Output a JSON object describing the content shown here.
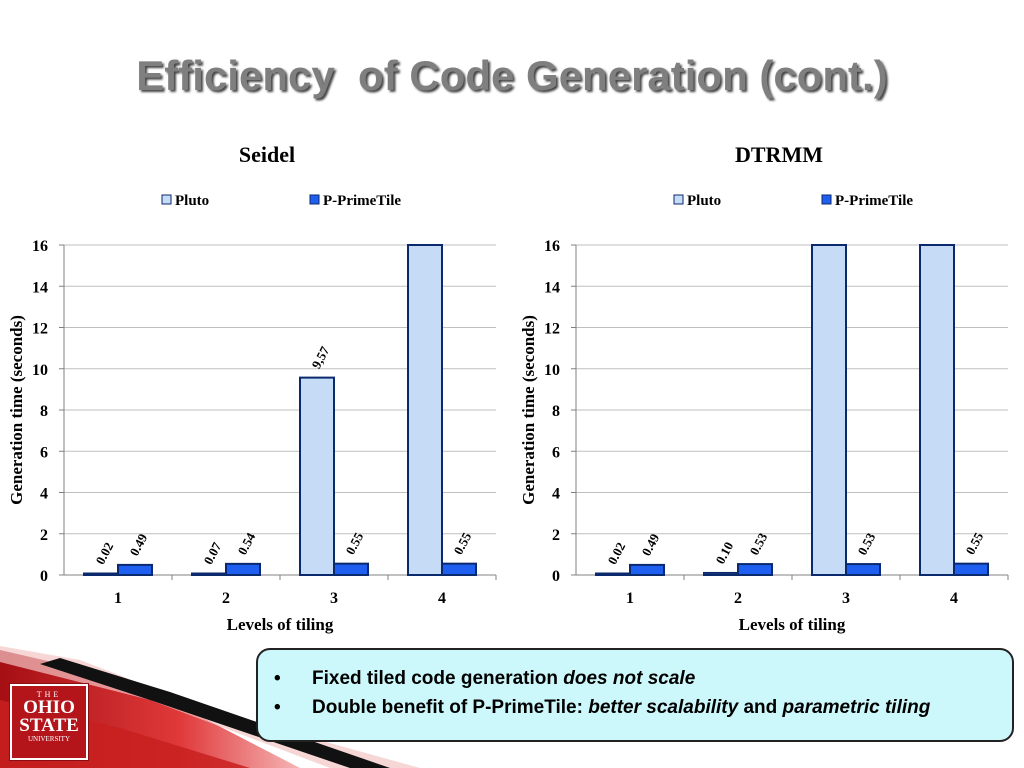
{
  "slide": {
    "title": "Efficiency  of Code Generation (cont.)",
    "logo": {
      "line1": "THE",
      "line2": "OHIO",
      "line3": "STATE",
      "line4": "UNIVERSITY"
    }
  },
  "colors": {
    "pluto_fill": "#c6dcf6",
    "primetile_fill": "#1f5ff0",
    "bar_stroke": "#0b2a6e",
    "gridline": "#bfbfbf",
    "callout_bg": "#ccf8fb",
    "ohio_red": "#b3151b"
  },
  "callout": {
    "bullet1": {
      "text": "Fixed tiled code generation ",
      "emph": "does not scale"
    },
    "bullet2": {
      "text1": "Double benefit of P-PrimeTile: ",
      "emph1": "better scalability",
      "text2": " and ",
      "emph2": "parametric tiling"
    }
  },
  "chart_data": [
    {
      "type": "bar",
      "title": "Seidel",
      "xlabel": "Levels of tiling",
      "ylabel": "Generation time (seconds)",
      "categories": [
        "1",
        "2",
        "3",
        "4"
      ],
      "ylim": [
        0,
        16
      ],
      "yticks": [
        0,
        2,
        4,
        6,
        8,
        10,
        12,
        14,
        16
      ],
      "grid": true,
      "legend_position": "top",
      "series": [
        {
          "name": "Pluto",
          "values": [
            0.02,
            0.07,
            9.57,
            16
          ],
          "labels": [
            "0.02",
            "0.07",
            "9,57",
            ""
          ]
        },
        {
          "name": "P-PrimeTile",
          "values": [
            0.49,
            0.54,
            0.55,
            0.55
          ],
          "labels": [
            "0.49",
            "0.54",
            "0.55",
            "0.55"
          ]
        }
      ]
    },
    {
      "type": "bar",
      "title": "DTRMM",
      "xlabel": "Levels of tiling",
      "ylabel": "Generation time (seconds)",
      "categories": [
        "1",
        "2",
        "3",
        "4"
      ],
      "ylim": [
        0,
        16
      ],
      "yticks": [
        0,
        2,
        4,
        6,
        8,
        10,
        12,
        14,
        16
      ],
      "grid": true,
      "legend_position": "top",
      "series": [
        {
          "name": "Pluto",
          "values": [
            0.02,
            0.1,
            16,
            16
          ],
          "labels": [
            "0.02",
            "0.10",
            "",
            ""
          ]
        },
        {
          "name": "P-PrimeTile",
          "values": [
            0.49,
            0.53,
            0.53,
            0.55
          ],
          "labels": [
            "0.49",
            "0.53",
            "0.53",
            "0.55"
          ]
        }
      ]
    }
  ]
}
